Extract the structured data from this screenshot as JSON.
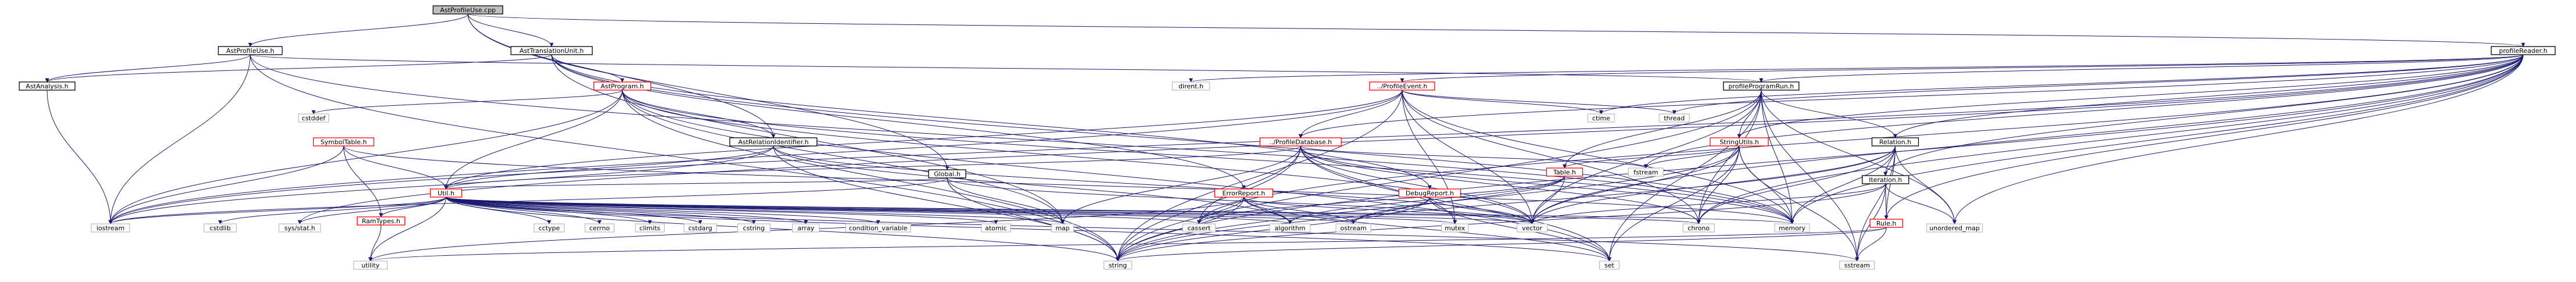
{
  "nodes": [
    {
      "id": "AstProfileUse_cpp",
      "label": "AstProfileUse.cpp",
      "style": "root"
    },
    {
      "id": "AstProfileUse_h",
      "label": "AstProfileUse.h",
      "style": "boxed"
    },
    {
      "id": "AstTranslationUnit_h",
      "label": "AstTranslationUnit.h",
      "style": "boxed"
    },
    {
      "id": "AstAnalysis_h",
      "label": "AstAnalysis.h",
      "style": "boxed"
    },
    {
      "id": "cstddef",
      "label": "cstddef",
      "style": "plain"
    },
    {
      "id": "AstProgram_h",
      "label": "AstProgram.h",
      "style": "red"
    },
    {
      "id": "SymbolTable_h",
      "label": "SymbolTable.h",
      "style": "red"
    },
    {
      "id": "AstRelationIdentifier_h",
      "label": "AstRelationIdentifier.h",
      "style": "boxed"
    },
    {
      "id": "Global_h",
      "label": "Global.h",
      "style": "boxed"
    },
    {
      "id": "Util_h",
      "label": "Util.h",
      "style": "red"
    },
    {
      "id": "RamTypes_h",
      "label": "RamTypes.h",
      "style": "red"
    },
    {
      "id": "ErrorReport_h",
      "label": "ErrorReport.h",
      "style": "red"
    },
    {
      "id": "DebugReport_h",
      "label": "DebugReport.h",
      "style": "red"
    },
    {
      "id": "Table_h",
      "label": "Table.h",
      "style": "red"
    },
    {
      "id": "ProfileDatabase_h",
      "label": "../ProfileDatabase.h",
      "style": "red"
    },
    {
      "id": "ProfileEvent_h",
      "label": "../ProfileEvent.h",
      "style": "red"
    },
    {
      "id": "profileReader_h",
      "label": "profileReader.h",
      "style": "boxed"
    },
    {
      "id": "ProgramRun_h",
      "label": "profileProgramRun.h",
      "style": "boxed"
    },
    {
      "id": "StringUtils_h",
      "label": "StringUtils.h",
      "style": "red"
    },
    {
      "id": "Relation_h",
      "label": "Relation.h",
      "style": "boxed"
    },
    {
      "id": "Iteration_h",
      "label": "Iteration.h",
      "style": "boxed"
    },
    {
      "id": "Rule_h",
      "label": "Rule.h",
      "style": "red"
    },
    {
      "id": "dirent_h",
      "label": "dirent.h",
      "style": "plain"
    },
    {
      "id": "ctime",
      "label": "ctime",
      "style": "plain"
    },
    {
      "id": "thread",
      "label": "thread",
      "style": "plain"
    },
    {
      "id": "fstream",
      "label": "fstream",
      "style": "plain"
    },
    {
      "id": "iostream",
      "label": "iostream",
      "style": "plain"
    },
    {
      "id": "cstdlib",
      "label": "cstdlib",
      "style": "plain"
    },
    {
      "id": "sys_stat_h",
      "label": "sys/stat.h",
      "style": "plain"
    },
    {
      "id": "utility",
      "label": "utility",
      "style": "plain"
    },
    {
      "id": "cctype",
      "label": "cctype",
      "style": "plain"
    },
    {
      "id": "cerrno",
      "label": "cerrno",
      "style": "plain"
    },
    {
      "id": "climits",
      "label": "climits",
      "style": "plain"
    },
    {
      "id": "cstdarg",
      "label": "cstdarg",
      "style": "plain"
    },
    {
      "id": "cstring",
      "label": "cstring",
      "style": "plain"
    },
    {
      "id": "array",
      "label": "array",
      "style": "plain"
    },
    {
      "id": "condition_variable",
      "label": "condition_variable",
      "style": "plain"
    },
    {
      "id": "atomic",
      "label": "atomic",
      "style": "plain"
    },
    {
      "id": "map",
      "label": "map",
      "style": "plain"
    },
    {
      "id": "cassert",
      "label": "cassert",
      "style": "plain"
    },
    {
      "id": "algorithm",
      "label": "algorithm",
      "style": "plain"
    },
    {
      "id": "ostream",
      "label": "ostream",
      "style": "plain"
    },
    {
      "id": "string",
      "label": "string",
      "style": "plain"
    },
    {
      "id": "mutex",
      "label": "mutex",
      "style": "plain"
    },
    {
      "id": "vector",
      "label": "vector",
      "style": "plain"
    },
    {
      "id": "set",
      "label": "set",
      "style": "plain"
    },
    {
      "id": "chrono",
      "label": "chrono",
      "style": "plain"
    },
    {
      "id": "memory",
      "label": "memory",
      "style": "plain"
    },
    {
      "id": "sstream",
      "label": "sstream",
      "style": "plain"
    },
    {
      "id": "unordered_map",
      "label": "unordered_map",
      "style": "plain"
    }
  ],
  "edges": [
    [
      "AstProfileUse_cpp",
      "AstProfileUse_h"
    ],
    [
      "AstProfileUse_cpp",
      "AstTranslationUnit_h"
    ],
    [
      "AstProfileUse_cpp",
      "Global_h"
    ],
    [
      "AstProfileUse_cpp",
      "AstRelationIdentifier_h"
    ],
    [
      "AstProfileUse_cpp",
      "profileReader_h"
    ],
    [
      "AstProfileUse_h",
      "AstAnalysis_h"
    ],
    [
      "AstProfileUse_h",
      "iostream"
    ],
    [
      "AstProfileUse_h",
      "ProgramRun_h"
    ],
    [
      "AstProfileUse_h",
      "string"
    ],
    [
      "AstProfileUse_h",
      "memory"
    ],
    [
      "AstTranslationUnit_h",
      "AstAnalysis_h"
    ],
    [
      "AstTranslationUnit_h",
      "AstProgram_h"
    ],
    [
      "AstTranslationUnit_h",
      "DebugReport_h"
    ],
    [
      "AstTranslationUnit_h",
      "ErrorReport_h"
    ],
    [
      "AstTranslationUnit_h",
      "map"
    ],
    [
      "AstTranslationUnit_h",
      "memory"
    ],
    [
      "AstAnalysis_h",
      "iostream"
    ],
    [
      "AstProgram_h",
      "cstddef"
    ],
    [
      "AstProgram_h",
      "AstRelationIdentifier_h"
    ],
    [
      "AstProgram_h",
      "Util_h"
    ],
    [
      "AstProgram_h",
      "map"
    ],
    [
      "AstProgram_h",
      "set"
    ],
    [
      "AstProgram_h",
      "memory"
    ],
    [
      "AstProgram_h",
      "string"
    ],
    [
      "AstProgram_h",
      "vector"
    ],
    [
      "AstProgram_h",
      "iostream"
    ],
    [
      "AstRelationIdentifier_h",
      "Util_h"
    ],
    [
      "AstRelationIdentifier_h",
      "algorithm"
    ],
    [
      "AstRelationIdentifier_h",
      "iostream"
    ],
    [
      "AstRelationIdentifier_h",
      "string"
    ],
    [
      "AstRelationIdentifier_h",
      "vector"
    ],
    [
      "SymbolTable_h",
      "Util_h"
    ],
    [
      "SymbolTable_h",
      "RamTypes_h"
    ],
    [
      "SymbolTable_h",
      "iostream"
    ],
    [
      "SymbolTable_h",
      "memory"
    ],
    [
      "Global_h",
      "Util_h"
    ],
    [
      "Global_h",
      "map"
    ],
    [
      "Global_h",
      "string"
    ],
    [
      "Global_h",
      "vector"
    ],
    [
      "Global_h",
      "iostream"
    ],
    [
      "Util_h",
      "RamTypes_h"
    ],
    [
      "Util_h",
      "iostream"
    ],
    [
      "Util_h",
      "cstdlib"
    ],
    [
      "Util_h",
      "sys_stat_h"
    ],
    [
      "Util_h",
      "utility"
    ],
    [
      "Util_h",
      "cctype"
    ],
    [
      "Util_h",
      "cerrno"
    ],
    [
      "Util_h",
      "climits"
    ],
    [
      "Util_h",
      "cstdarg"
    ],
    [
      "Util_h",
      "cstring"
    ],
    [
      "Util_h",
      "array"
    ],
    [
      "Util_h",
      "condition_variable"
    ],
    [
      "Util_h",
      "atomic"
    ],
    [
      "Util_h",
      "map"
    ],
    [
      "Util_h",
      "cassert"
    ],
    [
      "Util_h",
      "algorithm"
    ],
    [
      "Util_h",
      "ostream"
    ],
    [
      "Util_h",
      "string"
    ],
    [
      "Util_h",
      "mutex"
    ],
    [
      "Util_h",
      "vector"
    ],
    [
      "Util_h",
      "set"
    ],
    [
      "Util_h",
      "chrono"
    ],
    [
      "Util_h",
      "memory"
    ],
    [
      "Util_h",
      "sstream"
    ],
    [
      "RamTypes_h",
      "utility"
    ],
    [
      "ErrorReport_h",
      "algorithm"
    ],
    [
      "ErrorReport_h",
      "cassert"
    ],
    [
      "ErrorReport_h",
      "ostream"
    ],
    [
      "ErrorReport_h",
      "string"
    ],
    [
      "ErrorReport_h",
      "vector"
    ],
    [
      "ErrorReport_h",
      "set"
    ],
    [
      "ErrorReport_h",
      "utility"
    ],
    [
      "DebugReport_h",
      "ostream"
    ],
    [
      "DebugReport_h",
      "string"
    ],
    [
      "DebugReport_h",
      "vector"
    ],
    [
      "DebugReport_h",
      "set"
    ],
    [
      "Table_h",
      "cassert"
    ],
    [
      "Table_h",
      "ostream"
    ],
    [
      "Table_h",
      "vector"
    ],
    [
      "Table_h",
      "algorithm"
    ],
    [
      "profileReader_h",
      "ProfileDatabase_h"
    ],
    [
      "profileReader_h",
      "ProfileEvent_h"
    ],
    [
      "profileReader_h",
      "ProgramRun_h"
    ],
    [
      "profileReader_h",
      "StringUtils_h"
    ],
    [
      "profileReader_h",
      "Relation_h"
    ],
    [
      "profileReader_h",
      "Iteration_h"
    ],
    [
      "profileReader_h",
      "Rule_h"
    ],
    [
      "profileReader_h",
      "dirent_h"
    ],
    [
      "profileReader_h",
      "ctime"
    ],
    [
      "profileReader_h",
      "thread"
    ],
    [
      "profileReader_h",
      "fstream"
    ],
    [
      "profileReader_h",
      "iostream"
    ],
    [
      "profileReader_h",
      "cassert"
    ],
    [
      "profileReader_h",
      "string"
    ],
    [
      "profileReader_h",
      "vector"
    ],
    [
      "profileReader_h",
      "memory"
    ],
    [
      "profileReader_h",
      "chrono"
    ],
    [
      "profileReader_h",
      "sys_stat_h"
    ],
    [
      "profileReader_h",
      "unordered_map"
    ],
    [
      "ProfileEvent_h",
      "ProfileDatabase_h"
    ],
    [
      "ProfileEvent_h",
      "Util_h"
    ],
    [
      "ProfileEvent_h",
      "ctime"
    ],
    [
      "ProfileEvent_h",
      "thread"
    ],
    [
      "ProfileEvent_h",
      "string"
    ],
    [
      "ProfileEvent_h",
      "mutex"
    ],
    [
      "ProfileEvent_h",
      "chrono"
    ],
    [
      "ProfileEvent_h",
      "iostream"
    ],
    [
      "ProfileEvent_h",
      "vector"
    ],
    [
      "ProfileEvent_h",
      "memory"
    ],
    [
      "ProfileDatabase_h",
      "Util_h"
    ],
    [
      "ProfileDatabase_h",
      "fstream"
    ],
    [
      "ProfileDatabase_h",
      "cassert"
    ],
    [
      "ProfileDatabase_h",
      "chrono"
    ],
    [
      "ProfileDatabase_h",
      "mutex"
    ],
    [
      "ProfileDatabase_h",
      "map"
    ],
    [
      "ProfileDatabase_h",
      "string"
    ],
    [
      "ProfileDatabase_h",
      "memory"
    ],
    [
      "ProfileDatabase_h",
      "set"
    ],
    [
      "ProfileDatabase_h",
      "vector"
    ],
    [
      "ProgramRun_h",
      "StringUtils_h"
    ],
    [
      "ProgramRun_h",
      "Table_h"
    ],
    [
      "ProgramRun_h",
      "Relation_h"
    ],
    [
      "ProgramRun_h",
      "string"
    ],
    [
      "ProgramRun_h",
      "vector"
    ],
    [
      "ProgramRun_h",
      "memory"
    ],
    [
      "ProgramRun_h",
      "chrono"
    ],
    [
      "ProgramRun_h",
      "set"
    ],
    [
      "ProgramRun_h",
      "sstream"
    ],
    [
      "ProgramRun_h",
      "unordered_map"
    ],
    [
      "StringUtils_h",
      "Table_h"
    ],
    [
      "StringUtils_h",
      "fstream"
    ],
    [
      "StringUtils_h",
      "string"
    ],
    [
      "StringUtils_h",
      "vector"
    ],
    [
      "StringUtils_h",
      "memory"
    ],
    [
      "StringUtils_h",
      "chrono"
    ],
    [
      "StringUtils_h",
      "set"
    ],
    [
      "StringUtils_h",
      "sstream"
    ],
    [
      "Relation_h",
      "Iteration_h"
    ],
    [
      "Relation_h",
      "Rule_h"
    ],
    [
      "Relation_h",
      "string"
    ],
    [
      "Relation_h",
      "vector"
    ],
    [
      "Relation_h",
      "memory"
    ],
    [
      "Relation_h",
      "chrono"
    ],
    [
      "Relation_h",
      "sstream"
    ],
    [
      "Relation_h",
      "unordered_map"
    ],
    [
      "Iteration_h",
      "Rule_h"
    ],
    [
      "Iteration_h",
      "string"
    ],
    [
      "Iteration_h",
      "vector"
    ],
    [
      "Iteration_h",
      "sstream"
    ],
    [
      "Iteration_h",
      "unordered_map"
    ],
    [
      "Rule_h",
      "string"
    ],
    [
      "Rule_h",
      "utility"
    ],
    [
      "Rule_h",
      "sstream"
    ]
  ]
}
